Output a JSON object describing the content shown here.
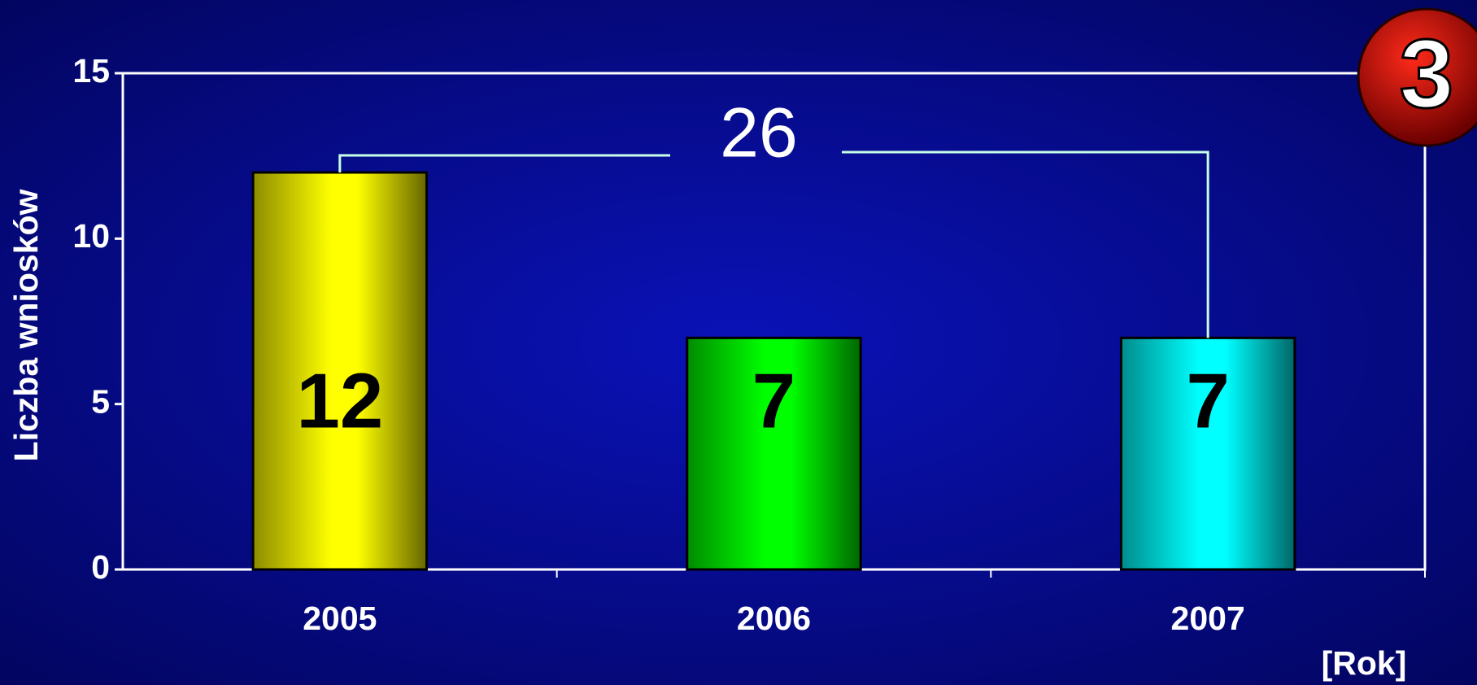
{
  "chart_data": {
    "type": "bar",
    "categories": [
      "2005",
      "2006",
      "2007"
    ],
    "values": [
      12,
      7,
      7
    ],
    "colors": [
      "#ffff00",
      "#00ff00",
      "#00ffff"
    ],
    "ylim": [
      0,
      15
    ],
    "yticks": [
      0,
      5,
      10,
      15
    ],
    "y_label": "Liczba wniosków",
    "x_label": "[Rok]",
    "annotation": "26",
    "badge": "3"
  }
}
